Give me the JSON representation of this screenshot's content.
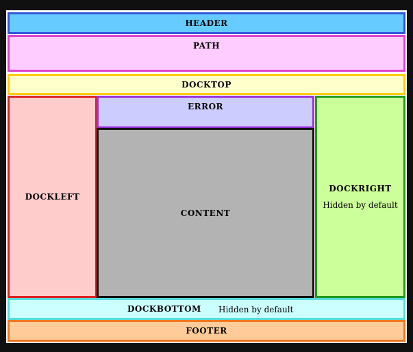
{
  "regions": {
    "header": {
      "label": "HEADER",
      "fill": "#66ccff",
      "border": "#3355dd"
    },
    "path": {
      "label": "PATH",
      "fill": "#ffccff",
      "border": "#dd44cc"
    },
    "docktop": {
      "label": "DOCKTOP",
      "fill": "#ffffcc",
      "border": "#ffcc00"
    },
    "dockleft": {
      "label": "DOCKLEFT",
      "fill": "#ffcccc",
      "border": "#dd2222"
    },
    "error": {
      "label": "ERROR",
      "fill": "#ccccff",
      "border": "#9933dd"
    },
    "content": {
      "label": "CONTENT",
      "fill": "#b3b3b3",
      "border": "#111111"
    },
    "dockright": {
      "label": "DOCKRIGHT",
      "note": "Hidden by default",
      "fill": "#ccff99",
      "border": "#229922"
    },
    "dockbottom": {
      "label": "DOCKBOTTOM",
      "note": "Hidden by default",
      "fill": "#ccffff",
      "border": "#55dddd"
    },
    "footer": {
      "label": "FOOTER",
      "fill": "#ffcc99",
      "border": "#ee7722"
    }
  }
}
